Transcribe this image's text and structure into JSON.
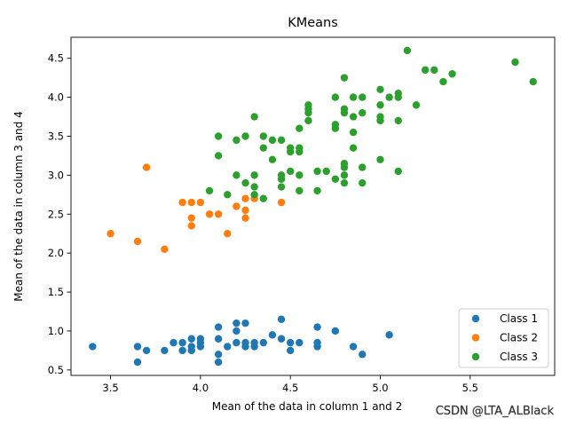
{
  "chart_data": {
    "type": "scatter",
    "title": "KMeans",
    "xlabel": "Mean of the data in column 1 and 2",
    "ylabel": "Mean of the data in column 3 and 4",
    "xlim": [
      3.28,
      5.97
    ],
    "ylim": [
      0.43,
      4.77
    ],
    "xticks": [
      "3.5",
      "4.0",
      "4.5",
      "5.0",
      "5.5"
    ],
    "xtick_values": [
      3.5,
      4.0,
      4.5,
      5.0,
      5.5
    ],
    "yticks": [
      "0.5",
      "1.0",
      "1.5",
      "2.0",
      "2.5",
      "3.0",
      "3.5",
      "4.0",
      "4.5"
    ],
    "ytick_values": [
      0.5,
      1.0,
      1.5,
      2.0,
      2.5,
      3.0,
      3.5,
      4.0,
      4.5
    ],
    "grid": false,
    "legend_position": "bottom-right",
    "series": [
      {
        "name": "Class 1",
        "color": "#1f77b4",
        "points": [
          [
            3.4,
            0.8
          ],
          [
            3.65,
            0.8
          ],
          [
            3.65,
            0.6
          ],
          [
            3.7,
            0.75
          ],
          [
            3.8,
            0.75
          ],
          [
            3.85,
            0.85
          ],
          [
            3.9,
            0.85
          ],
          [
            3.9,
            0.75
          ],
          [
            3.95,
            0.9
          ],
          [
            3.95,
            0.8
          ],
          [
            3.95,
            0.75
          ],
          [
            4.0,
            0.9
          ],
          [
            4.0,
            0.85
          ],
          [
            4.0,
            0.8
          ],
          [
            4.1,
            1.05
          ],
          [
            4.1,
            0.9
          ],
          [
            4.1,
            0.7
          ],
          [
            4.1,
            0.6
          ],
          [
            4.15,
            0.8
          ],
          [
            4.2,
            1.1
          ],
          [
            4.2,
            1.0
          ],
          [
            4.2,
            0.85
          ],
          [
            4.25,
            1.1
          ],
          [
            4.25,
            0.85
          ],
          [
            4.25,
            0.8
          ],
          [
            4.3,
            0.85
          ],
          [
            4.3,
            0.8
          ],
          [
            4.35,
            0.85
          ],
          [
            4.4,
            0.95
          ],
          [
            4.45,
            1.15
          ],
          [
            4.45,
            0.9
          ],
          [
            4.5,
            0.85
          ],
          [
            4.5,
            0.75
          ],
          [
            4.55,
            0.85
          ],
          [
            4.65,
            1.05
          ],
          [
            4.65,
            0.85
          ],
          [
            4.65,
            0.8
          ],
          [
            4.75,
            1.0
          ],
          [
            4.85,
            0.8
          ],
          [
            4.9,
            0.7
          ],
          [
            5.05,
            0.95
          ]
        ]
      },
      {
        "name": "Class 2",
        "color": "#ff7f0e",
        "points": [
          [
            3.5,
            2.25
          ],
          [
            3.65,
            2.15
          ],
          [
            3.7,
            3.1
          ],
          [
            3.8,
            2.05
          ],
          [
            3.9,
            2.65
          ],
          [
            3.95,
            2.65
          ],
          [
            3.95,
            2.45
          ],
          [
            3.95,
            2.35
          ],
          [
            4.0,
            2.65
          ],
          [
            4.05,
            2.5
          ],
          [
            4.1,
            2.5
          ],
          [
            4.15,
            2.25
          ],
          [
            4.2,
            2.6
          ],
          [
            4.25,
            2.7
          ],
          [
            4.25,
            2.55
          ],
          [
            4.25,
            2.45
          ],
          [
            4.3,
            2.7
          ],
          [
            4.45,
            2.65
          ]
        ]
      },
      {
        "name": "Class 3",
        "color": "#2ca02c",
        "points": [
          [
            4.05,
            2.8
          ],
          [
            4.1,
            3.5
          ],
          [
            4.1,
            3.25
          ],
          [
            4.15,
            2.75
          ],
          [
            4.2,
            3.45
          ],
          [
            4.2,
            3.0
          ],
          [
            4.25,
            3.5
          ],
          [
            4.25,
            2.9
          ],
          [
            4.3,
            3.75
          ],
          [
            4.3,
            3.0
          ],
          [
            4.3,
            2.85
          ],
          [
            4.3,
            2.75
          ],
          [
            4.35,
            3.5
          ],
          [
            4.35,
            3.35
          ],
          [
            4.35,
            2.7
          ],
          [
            4.4,
            3.45
          ],
          [
            4.4,
            3.2
          ],
          [
            4.45,
            3.45
          ],
          [
            4.45,
            3.0
          ],
          [
            4.45,
            2.95
          ],
          [
            4.45,
            2.85
          ],
          [
            4.5,
            3.35
          ],
          [
            4.5,
            3.3
          ],
          [
            4.5,
            3.05
          ],
          [
            4.55,
            3.6
          ],
          [
            4.55,
            3.35
          ],
          [
            4.55,
            3.3
          ],
          [
            4.55,
            3.0
          ],
          [
            4.55,
            2.8
          ],
          [
            4.6,
            3.9
          ],
          [
            4.6,
            3.85
          ],
          [
            4.6,
            3.8
          ],
          [
            4.6,
            3.7
          ],
          [
            4.65,
            3.05
          ],
          [
            4.65,
            2.8
          ],
          [
            4.7,
            3.05
          ],
          [
            4.75,
            4.0
          ],
          [
            4.75,
            3.65
          ],
          [
            4.75,
            3.6
          ],
          [
            4.75,
            2.95
          ],
          [
            4.8,
            4.25
          ],
          [
            4.8,
            3.85
          ],
          [
            4.8,
            3.8
          ],
          [
            4.8,
            3.15
          ],
          [
            4.8,
            3.1
          ],
          [
            4.8,
            3.0
          ],
          [
            4.8,
            2.9
          ],
          [
            4.85,
            4.0
          ],
          [
            4.85,
            3.75
          ],
          [
            4.85,
            3.55
          ],
          [
            4.85,
            3.35
          ],
          [
            4.9,
            4.0
          ],
          [
            4.9,
            3.8
          ],
          [
            4.9,
            3.1
          ],
          [
            4.9,
            2.9
          ],
          [
            5.0,
            4.1
          ],
          [
            5.0,
            3.9
          ],
          [
            5.0,
            3.75
          ],
          [
            5.0,
            3.7
          ],
          [
            5.0,
            3.2
          ],
          [
            5.05,
            4.0
          ],
          [
            5.1,
            4.05
          ],
          [
            5.1,
            4.0
          ],
          [
            5.1,
            3.7
          ],
          [
            5.1,
            3.05
          ],
          [
            5.15,
            4.6
          ],
          [
            5.2,
            3.9
          ],
          [
            5.25,
            4.35
          ],
          [
            5.3,
            4.35
          ],
          [
            5.35,
            4.2
          ],
          [
            5.4,
            4.3
          ],
          [
            5.75,
            4.45
          ],
          [
            5.85,
            4.2
          ]
        ]
      }
    ]
  },
  "watermark": "CSDN @LTA_ALBlack"
}
